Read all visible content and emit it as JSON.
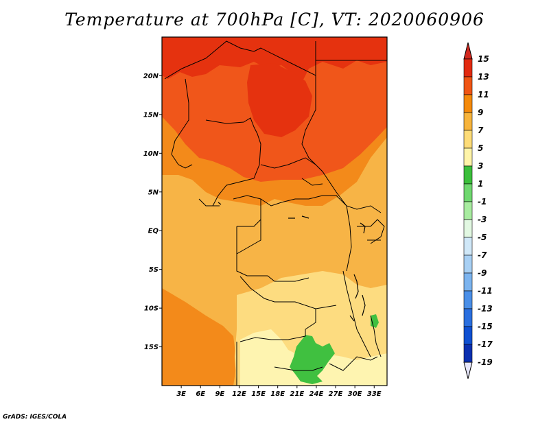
{
  "title": "Temperature at 700hPa [C], VT: 2020060906",
  "credit": "GrADS: IGES/COLA",
  "map": {
    "lon_labels": [
      "3E",
      "6E",
      "9E",
      "12E",
      "15E",
      "18E",
      "21E",
      "24E",
      "27E",
      "30E",
      "33E"
    ],
    "lat_labels": [
      "20N",
      "15N",
      "10N",
      "5N",
      "EQ",
      "5S",
      "10S",
      "15S"
    ],
    "lon_range": [
      0,
      35
    ],
    "lat_range": [
      -20,
      25
    ]
  },
  "colorbar": {
    "labels": [
      "15",
      "13",
      "11",
      "9",
      "7",
      "5",
      "3",
      "1",
      "-1",
      "-3",
      "-5",
      "-7",
      "-9",
      "-11",
      "-13",
      "-15",
      "-17",
      "-19"
    ],
    "colors": [
      "#e22a10",
      "#f05514",
      "#f58a0a",
      "#f7b43c",
      "#fddc78",
      "#fef4a8",
      "#3bbf3b",
      "#6fd86f",
      "#a8eca0",
      "#e2f8e2",
      "#d0e8f8",
      "#a8d0f4",
      "#7cb4ef",
      "#4a8fe8",
      "#2a6fdf",
      "#0f50d2",
      "#0a2fb0",
      "#0a0a80"
    ],
    "top_arrow_color": "#d2281e",
    "bottom_arrow_color": "#e6e6fa"
  },
  "fills": {
    "red": "#e5320f",
    "red_orange": "#f0561a",
    "orange": "#f38a1a",
    "light_orange": "#f7b446",
    "yellow": "#fddc80",
    "pale_yellow": "#fef4b0",
    "green": "#40c040"
  }
}
